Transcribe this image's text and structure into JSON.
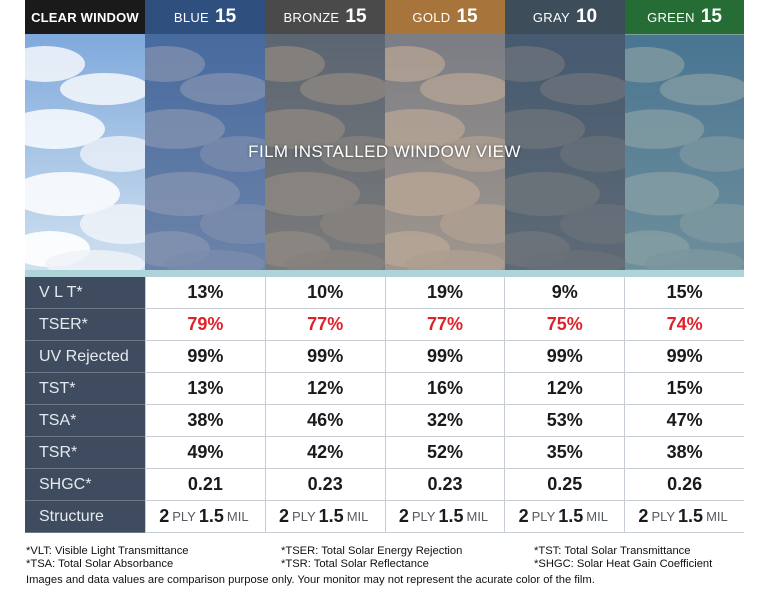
{
  "columns": [
    {
      "name": "CLEAR WINDOW",
      "number": "",
      "bg": "#1a1a1a",
      "tint": "rgba(255,255,255,0)"
    },
    {
      "name": "BLUE",
      "number": "15",
      "bg": "#2f4f7f",
      "tint": "rgba(25,55,110,0.55)"
    },
    {
      "name": "BRONZE",
      "number": "15",
      "bg": "#4a4a4a",
      "tint": "rgba(70,60,50,0.62)"
    },
    {
      "name": "GOLD",
      "number": "15",
      "bg": "#a7743c",
      "tint": "rgba(120,90,60,0.55)"
    },
    {
      "name": "GRAY",
      "number": "10",
      "bg": "#3d4d5a",
      "tint": "rgba(45,55,65,0.7)"
    },
    {
      "name": "GREEN",
      "number": "15",
      "bg": "#266c35",
      "tint": "rgba(30,75,85,0.55)"
    }
  ],
  "view_label": "FILM INSTALLED WINDOW VIEW",
  "rows": [
    {
      "label": "V L T*",
      "values": [
        "13%",
        "10%",
        "19%",
        "9%",
        "15%"
      ],
      "color": "#1a1a1a"
    },
    {
      "label": "TSER*",
      "values": [
        "79%",
        "77%",
        "77%",
        "75%",
        "74%"
      ],
      "color": "#e0212a"
    },
    {
      "label": "UV Rejected",
      "values": [
        "99%",
        "99%",
        "99%",
        "99%",
        "99%"
      ],
      "color": "#1a1a1a"
    },
    {
      "label": "TST*",
      "values": [
        "13%",
        "12%",
        "16%",
        "12%",
        "15%"
      ],
      "color": "#1a1a1a"
    },
    {
      "label": "TSA*",
      "values": [
        "38%",
        "46%",
        "32%",
        "53%",
        "47%"
      ],
      "color": "#1a1a1a"
    },
    {
      "label": "TSR*",
      "values": [
        "49%",
        "42%",
        "52%",
        "35%",
        "38%"
      ],
      "color": "#1a1a1a"
    },
    {
      "label": "SHGC*",
      "values": [
        "0.21",
        "0.23",
        "0.23",
        "0.25",
        "0.26"
      ],
      "color": "#1a1a1a"
    }
  ],
  "structure": {
    "label": "Structure",
    "ply_count": "2",
    "ply_word": "PLY",
    "mil_value": "1.5",
    "mil_word": "MIL"
  },
  "footnotes": {
    "line1": [
      "*VLT: Visible Light Transmittance",
      "*TSER: Total Solar Energy Rejection",
      "*TST: Total Solar Transmittance"
    ],
    "line2": [
      "*TSA: Total Solar Absorbance",
      "*TSR: Total Solar Reflectance",
      "*SHGC: Solar Heat Gain Coefficient"
    ],
    "disclaimer": "Images and data values are comparison purpose only. Your monitor may not represent the acurate color of the film."
  }
}
